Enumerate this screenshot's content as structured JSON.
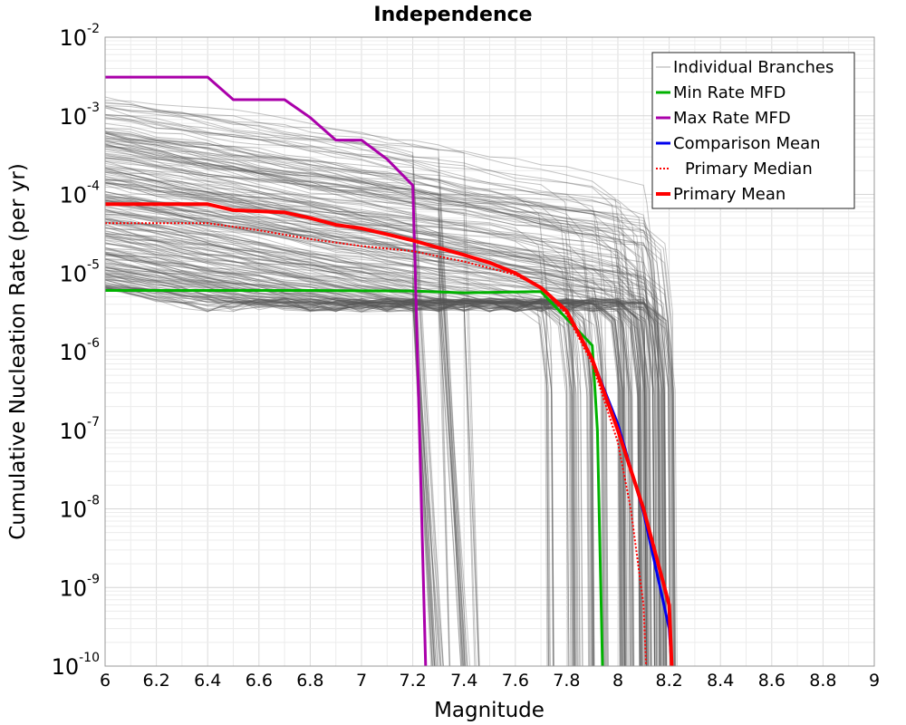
{
  "chart_data": {
    "type": "line",
    "title": "Independence",
    "xlabel": "Magnitude",
    "ylabel": "Cumulative Nucleation Rate (per yr)",
    "xlim": [
      6,
      9
    ],
    "ylim": [
      1e-10,
      0.01
    ],
    "yscale": "log",
    "grid": true,
    "legend_position": "top-right",
    "x_ticks": [
      "6",
      "6.2",
      "6.4",
      "6.6",
      "6.8",
      "7",
      "7.2",
      "7.4",
      "7.6",
      "7.8",
      "8",
      "8.2",
      "8.4",
      "8.6",
      "8.8",
      "9"
    ],
    "y_ticks": [
      {
        "base": "10",
        "exp": "-10",
        "value": 1e-10
      },
      {
        "base": "10",
        "exp": "-9",
        "value": 1e-09
      },
      {
        "base": "10",
        "exp": "-8",
        "value": 1e-08
      },
      {
        "base": "10",
        "exp": "-7",
        "value": 1e-07
      },
      {
        "base": "10",
        "exp": "-6",
        "value": 1e-06
      },
      {
        "base": "10",
        "exp": "-5",
        "value": 1e-05
      },
      {
        "base": "10",
        "exp": "-4",
        "value": 0.0001
      },
      {
        "base": "10",
        "exp": "-3",
        "value": 0.001
      },
      {
        "base": "10",
        "exp": "-2",
        "value": 0.01
      }
    ],
    "series": [
      {
        "name": "Individual Branches",
        "color": "#555555",
        "style": "thin",
        "note": "many overlapping branch curves",
        "values": []
      },
      {
        "name": "Min Rate MFD",
        "color": "#00b200",
        "style": "solid",
        "x": [
          6.0,
          6.8,
          7.2,
          7.4,
          7.7,
          7.9,
          7.92,
          7.94
        ],
        "y": [
          6e-06,
          6e-06,
          5.9e-06,
          5.6e-06,
          5.8e-06,
          1.2e-06,
          1e-07,
          1e-10
        ]
      },
      {
        "name": "Max Rate MFD",
        "color": "#aa00aa",
        "style": "solid",
        "x": [
          6.0,
          6.4,
          6.5,
          6.7,
          6.8,
          6.9,
          7.0,
          7.1,
          7.2,
          7.21,
          7.25
        ],
        "y": [
          0.0031,
          0.0031,
          0.0016,
          0.0016,
          0.00095,
          0.00049,
          0.00049,
          0.00028,
          0.00013,
          1e-05,
          1e-10
        ]
      },
      {
        "name": "Comparison Mean",
        "color": "#0000ee",
        "style": "solid",
        "x": [
          7.9,
          8.0,
          8.1,
          8.2,
          8.21
        ],
        "y": [
          8e-07,
          1.2e-07,
          9e-09,
          3e-10,
          1e-10
        ]
      },
      {
        "name": "Primary Median",
        "color": "#ff0000",
        "style": "dotted",
        "x": [
          6.0,
          6.4,
          6.6,
          6.8,
          7.0,
          7.2,
          7.4,
          7.6,
          7.7,
          7.8,
          7.9,
          8.0,
          8.05,
          8.1,
          8.11
        ],
        "y": [
          4.3e-05,
          4.3e-05,
          3.5e-05,
          2.7e-05,
          2.2e-05,
          1.9e-05,
          1.4e-05,
          9.5e-06,
          6.5e-06,
          3e-06,
          7e-07,
          7e-08,
          1e-08,
          6e-10,
          1e-10
        ]
      },
      {
        "name": "Primary Mean",
        "color": "#ff0000",
        "style": "thick",
        "x": [
          6.0,
          6.4,
          6.5,
          6.7,
          6.8,
          6.9,
          7.0,
          7.1,
          7.2,
          7.3,
          7.4,
          7.5,
          7.6,
          7.7,
          7.8,
          7.9,
          8.0,
          8.1,
          8.2,
          8.21
        ],
        "y": [
          7.5e-05,
          7.5e-05,
          6.3e-05,
          5.9e-05,
          5e-05,
          4.1e-05,
          3.7e-05,
          3.1e-05,
          2.6e-05,
          2.1e-05,
          1.7e-05,
          1.35e-05,
          1e-05,
          6.5e-06,
          3.3e-06,
          8e-07,
          1e-07,
          1e-08,
          6e-10,
          1e-10
        ]
      }
    ]
  }
}
